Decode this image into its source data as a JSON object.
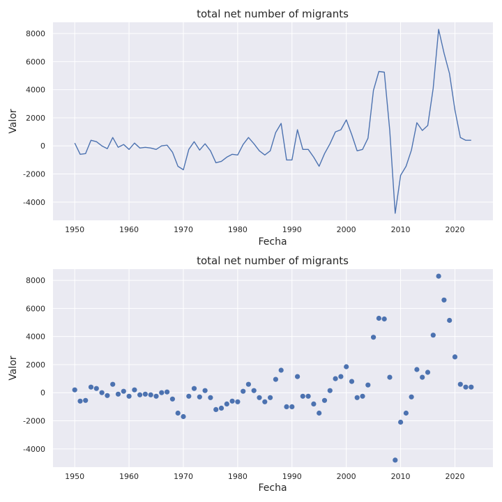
{
  "chart_data": [
    {
      "type": "line",
      "title": "total net number of migrants",
      "xlabel": "Fecha",
      "ylabel": "Valor",
      "xlim": [
        1946,
        2027
      ],
      "ylim": [
        -5300,
        8800
      ],
      "xticks": [
        1950,
        1960,
        1970,
        1980,
        1990,
        2000,
        2010,
        2020
      ],
      "yticks": [
        -4000,
        -2000,
        0,
        2000,
        4000,
        6000,
        8000
      ],
      "grid": true,
      "color": "#4c72b0",
      "x": [
        1950,
        1951,
        1952,
        1953,
        1954,
        1955,
        1956,
        1957,
        1958,
        1959,
        1960,
        1961,
        1962,
        1963,
        1964,
        1965,
        1966,
        1967,
        1968,
        1969,
        1970,
        1971,
        1972,
        1973,
        1974,
        1975,
        1976,
        1977,
        1978,
        1979,
        1980,
        1981,
        1982,
        1983,
        1984,
        1985,
        1986,
        1987,
        1988,
        1989,
        1990,
        1991,
        1992,
        1993,
        1994,
        1995,
        1996,
        1997,
        1998,
        1999,
        2000,
        2001,
        2002,
        2003,
        2004,
        2005,
        2006,
        2007,
        2008,
        2009,
        2010,
        2011,
        2012,
        2013,
        2014,
        2015,
        2016,
        2017,
        2018,
        2019,
        2020,
        2021,
        2022,
        2023
      ],
      "y": [
        200,
        -600,
        -550,
        400,
        300,
        0,
        -200,
        600,
        -100,
        100,
        -250,
        200,
        -150,
        -100,
        -150,
        -250,
        0,
        50,
        -450,
        -1450,
        -1700,
        -250,
        300,
        -300,
        150,
        -350,
        -1200,
        -1100,
        -800,
        -600,
        -650,
        100,
        600,
        150,
        -350,
        -650,
        -350,
        950,
        1600,
        -1000,
        -1000,
        1150,
        -250,
        -250,
        -800,
        -1450,
        -550,
        150,
        1000,
        1150,
        1850,
        800,
        -350,
        -250,
        550,
        3950,
        5300,
        5250,
        1100,
        -4800,
        -2100,
        -1450,
        -300,
        1650,
        1100,
        1450,
        4100,
        8300,
        6600,
        5150,
        2550,
        600,
        400,
        400
      ]
    },
    {
      "type": "scatter",
      "title": "total net number of migrants",
      "xlabel": "Fecha",
      "ylabel": "Valor",
      "xlim": [
        1946,
        2027
      ],
      "ylim": [
        -5300,
        8800
      ],
      "xticks": [
        1950,
        1960,
        1970,
        1980,
        1990,
        2000,
        2010,
        2020
      ],
      "yticks": [
        -4000,
        -2000,
        0,
        2000,
        4000,
        6000,
        8000
      ],
      "grid": true,
      "color": "#4c72b0",
      "x": [
        1950,
        1951,
        1952,
        1953,
        1954,
        1955,
        1956,
        1957,
        1958,
        1959,
        1960,
        1961,
        1962,
        1963,
        1964,
        1965,
        1966,
        1967,
        1968,
        1969,
        1970,
        1971,
        1972,
        1973,
        1974,
        1975,
        1976,
        1977,
        1978,
        1979,
        1980,
        1981,
        1982,
        1983,
        1984,
        1985,
        1986,
        1987,
        1988,
        1989,
        1990,
        1991,
        1992,
        1993,
        1994,
        1995,
        1996,
        1997,
        1998,
        1999,
        2000,
        2001,
        2002,
        2003,
        2004,
        2005,
        2006,
        2007,
        2008,
        2009,
        2010,
        2011,
        2012,
        2013,
        2014,
        2015,
        2016,
        2017,
        2018,
        2019,
        2020,
        2021,
        2022,
        2023
      ],
      "y": [
        200,
        -600,
        -550,
        400,
        300,
        0,
        -200,
        600,
        -100,
        100,
        -250,
        200,
        -150,
        -100,
        -150,
        -250,
        0,
        50,
        -450,
        -1450,
        -1700,
        -250,
        300,
        -300,
        150,
        -350,
        -1200,
        -1100,
        -800,
        -600,
        -650,
        100,
        600,
        150,
        -350,
        -650,
        -350,
        950,
        1600,
        -1000,
        -1000,
        1150,
        -250,
        -250,
        -800,
        -1450,
        -550,
        150,
        1000,
        1150,
        1850,
        800,
        -350,
        -250,
        550,
        3950,
        5300,
        5250,
        1100,
        -4800,
        -2100,
        -1450,
        -300,
        1650,
        1100,
        1450,
        4100,
        8300,
        6600,
        5150,
        2550,
        600,
        400,
        400
      ]
    }
  ]
}
